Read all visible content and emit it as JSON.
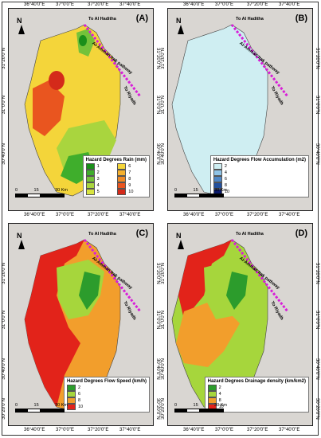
{
  "panels": [
    {
      "label": "(A)",
      "north": "N",
      "legend_title": "Hazard Degrees Rain (mm)",
      "legend": [
        {
          "value": "1",
          "color": "#1a8f1a"
        },
        {
          "value": "6",
          "color": "#f4d53a"
        },
        {
          "value": "2",
          "color": "#3fae2c"
        },
        {
          "value": "7",
          "color": "#f5b02d"
        },
        {
          "value": "3",
          "color": "#74c23a"
        },
        {
          "value": "8",
          "color": "#f08a25"
        },
        {
          "value": "4",
          "color": "#a9d53e"
        },
        {
          "value": "9",
          "color": "#e9551f"
        },
        {
          "value": "5",
          "color": "#d8e43f"
        },
        {
          "value": "10",
          "color": "#d42a1a"
        }
      ]
    },
    {
      "label": "(B)",
      "north": "N",
      "legend_title": "Hazard Degrees Flow Accumulation (m2)",
      "legend": [
        {
          "value": "2",
          "color": "#cfeef2"
        },
        {
          "value": "4",
          "color": "#8fc3e6"
        },
        {
          "value": "6",
          "color": "#4f87c6"
        },
        {
          "value": "8",
          "color": "#23509d"
        },
        {
          "value": "10",
          "color": "#0b1a6b"
        }
      ]
    },
    {
      "label": "(C)",
      "north": "N",
      "legend_title": "Hazard Degrees Flow Speed (km/h)",
      "legend": [
        {
          "value": "2",
          "color": "#2c9c2c"
        },
        {
          "value": "6",
          "color": "#a6d63c"
        },
        {
          "value": "8",
          "color": "#f29e2c"
        },
        {
          "value": "10",
          "color": "#e2231a"
        }
      ]
    },
    {
      "label": "(D)",
      "north": "N",
      "legend_title": "Hazard Degrees Drainage density (km/km2)",
      "legend": [
        {
          "value": "2",
          "color": "#2c9c2c"
        },
        {
          "value": "4",
          "color": "#a6d63c"
        },
        {
          "value": "8",
          "color": "#f29e2c"
        },
        {
          "value": "10",
          "color": "#e2231a"
        }
      ]
    }
  ],
  "lon_labels": [
    "36°40'0\"E",
    "37°0'0\"E",
    "37°20'0\"E",
    "37°40'0\"E"
  ],
  "lat_labels": [
    "31°20'0\"N",
    "31°0'0\"N",
    "30°40'0\"N",
    "30°20'0\"N"
  ],
  "scale": {
    "ticks": [
      "0",
      "15",
      "30 Km"
    ]
  },
  "route": {
    "top_label": "To Al Haditha",
    "road_label": "Al-Amman Irak pathway",
    "end_label": "To Riyadh"
  },
  "colors": {
    "road": "#d81fd8",
    "background": "#d9d6d2"
  }
}
